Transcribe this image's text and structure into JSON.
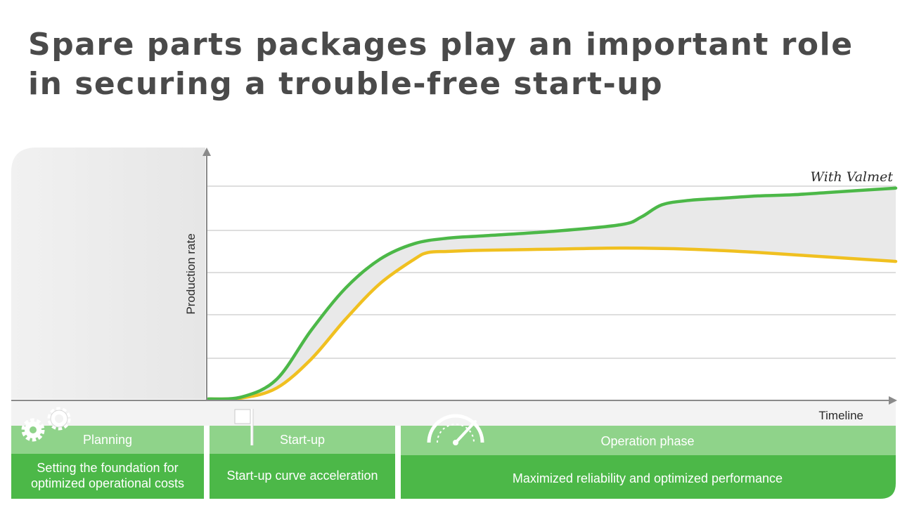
{
  "title": "Spare parts packages play an important role in securing a trouble-free start-up",
  "colors": {
    "green": "#4cb848",
    "yellow": "#f0c020",
    "light_green": "#8fd38a",
    "gap_fill": "#e9e9e9",
    "title": "#4a4a4a"
  },
  "chart_data": {
    "type": "line",
    "ylabel": "Production rate",
    "xlabel": "Timeline",
    "xlim": [
      0,
      100
    ],
    "ylim": [
      0,
      100
    ],
    "grid": true,
    "series": [
      {
        "name": "With Valmet",
        "color": "#4cb848",
        "x": [
          0,
          5,
          10,
          15,
          20,
          25,
          30,
          35,
          40,
          50,
          60,
          63,
          66,
          70,
          75,
          80,
          85,
          90,
          100
        ],
        "y": [
          0,
          1,
          9,
          31,
          50,
          63,
          70,
          72.5,
          73.5,
          75.5,
          78.5,
          82,
          87.5,
          89.5,
          90.5,
          91.5,
          92,
          93,
          95
        ]
      },
      {
        "name": "",
        "color": "#f0c020",
        "x": [
          0,
          5,
          10,
          15,
          20,
          25,
          30,
          32,
          35,
          40,
          50,
          60,
          70,
          80,
          90,
          100
        ],
        "y": [
          0,
          0.5,
          5,
          18,
          36,
          52,
          63,
          66,
          66.5,
          67,
          67.5,
          68,
          67.5,
          66,
          64,
          62
        ]
      }
    ]
  },
  "phases": [
    {
      "label": "Planning",
      "icon": "gears-icon",
      "description": [
        "Setting the foundation for",
        "optimized operational costs"
      ]
    },
    {
      "label": "Start-up",
      "icon": "flag-icon",
      "description": [
        "Start-up curve acceleration"
      ]
    },
    {
      "label": "Operation phase",
      "icon": "speedometer-icon",
      "description": [
        "Maximized reliability and optimized performance"
      ]
    }
  ]
}
